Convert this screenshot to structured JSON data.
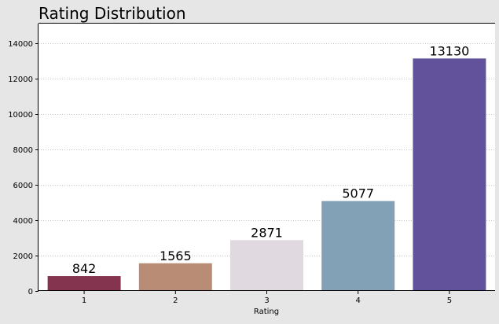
{
  "chart_data": {
    "type": "bar",
    "title": "Rating Distribution",
    "xlabel": "Rating",
    "ylabel": "",
    "categories": [
      "1",
      "2",
      "3",
      "4",
      "5"
    ],
    "values": [
      842,
      1565,
      2871,
      5077,
      13130
    ],
    "data_labels": [
      "842",
      "1565",
      "2871",
      "5077",
      "13130"
    ],
    "colors": [
      "#85344f",
      "#b98c76",
      "#e0d9df",
      "#82a0b6",
      "#62529c"
    ],
    "ylim": [
      0,
      15100
    ],
    "yticks": [
      0,
      2000,
      4000,
      6000,
      8000,
      10000,
      12000,
      14000
    ],
    "ytick_labels": [
      "0",
      "2000",
      "4000",
      "6000",
      "8000",
      "10000",
      "12000",
      "14000"
    ],
    "grid": "horizontal-dotted",
    "legend": "none",
    "background": "#e6e6e6",
    "plot_background": "#ffffff"
  }
}
